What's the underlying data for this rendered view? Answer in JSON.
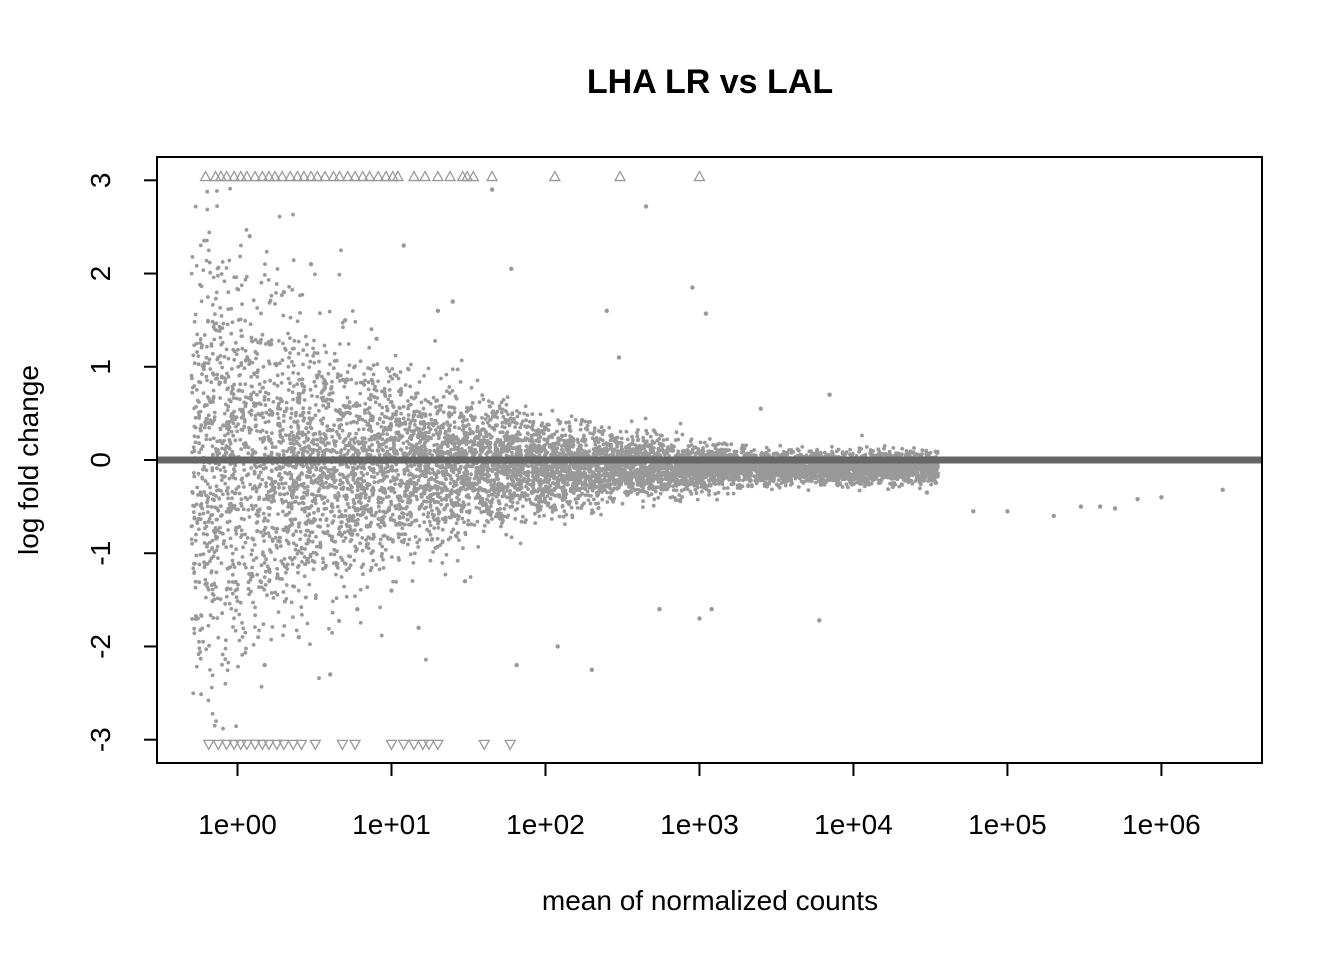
{
  "chart_data": {
    "type": "scatter",
    "title": "LHA LR vs LAL",
    "xlabel": "mean of normalized counts",
    "ylabel": "log fold change",
    "xscale": "log10",
    "xlim": [
      0.3,
      4500000
    ],
    "ylim": [
      -3.25,
      3.25
    ],
    "xticks": [
      1,
      10,
      100,
      1000,
      10000,
      100000,
      1000000
    ],
    "xtick_labels": [
      "1e+00",
      "1e+01",
      "1e+02",
      "1e+03",
      "1e+04",
      "1e+05",
      "1e+06"
    ],
    "yticks": [
      -3,
      -2,
      -1,
      0,
      1,
      2,
      3
    ],
    "ytick_labels": [
      "-3",
      "-2",
      "-1",
      "0",
      "1",
      "2",
      "3"
    ],
    "reference_line": {
      "y": 0,
      "color": "#666666"
    },
    "point_color": "#999999",
    "legend": "none",
    "grid": false,
    "series": [
      {
        "marker": "point",
        "points": [
          [
            1.2,
            2.4
          ],
          [
            1.5,
            -2.2
          ],
          [
            2.0,
            1.8
          ],
          [
            2.5,
            -1.9
          ],
          [
            3.0,
            2.1
          ],
          [
            4.0,
            -2.3
          ],
          [
            5.0,
            1.5
          ],
          [
            6.0,
            -1.6
          ],
          [
            8.0,
            1.3
          ],
          [
            10,
            -1.4
          ],
          [
            12,
            2.3
          ],
          [
            15,
            -1.8
          ],
          [
            20,
            1.6
          ],
          [
            25,
            1.7
          ],
          [
            30,
            -1.3
          ],
          [
            45,
            2.9
          ],
          [
            60,
            2.05
          ],
          [
            65,
            -2.2
          ],
          [
            120,
            -2.0
          ],
          [
            200,
            -2.25
          ],
          [
            250,
            1.6
          ],
          [
            300,
            1.1
          ],
          [
            450,
            2.72
          ],
          [
            550,
            -1.6
          ],
          [
            900,
            1.85
          ],
          [
            1000,
            -1.7
          ],
          [
            1100,
            1.57
          ],
          [
            1200,
            -1.6
          ],
          [
            2500,
            0.55
          ],
          [
            6000,
            -1.72
          ],
          [
            7000,
            0.7
          ],
          [
            30000,
            -0.35
          ],
          [
            60000,
            -0.55
          ],
          [
            100000,
            -0.55
          ],
          [
            200000,
            -0.6
          ],
          [
            300000,
            -0.5
          ],
          [
            400000,
            -0.5
          ],
          [
            500000,
            -0.52
          ],
          [
            700000,
            -0.42
          ],
          [
            1000000,
            -0.4
          ],
          [
            2500000,
            -0.32
          ]
        ]
      },
      {
        "marker": "triangle-up",
        "name": "clipped above",
        "x": [
          0.62,
          0.72,
          0.78,
          0.85,
          0.95,
          1.05,
          1.15,
          1.3,
          1.45,
          1.6,
          1.75,
          1.95,
          2.2,
          2.45,
          2.7,
          3.0,
          3.3,
          3.7,
          4.2,
          4.6,
          5.2,
          5.8,
          6.5,
          7.2,
          8.2,
          9.2,
          10.2,
          11.0,
          14.0,
          16.5,
          20,
          24,
          29,
          31,
          34,
          45,
          115,
          305,
          1000
        ],
        "y": 3.04
      },
      {
        "marker": "triangle-down",
        "name": "clipped below",
        "x": [
          0.65,
          0.75,
          0.85,
          0.95,
          1.05,
          1.15,
          1.3,
          1.45,
          1.6,
          1.8,
          2.0,
          2.3,
          2.6,
          3.2,
          4.8,
          5.8,
          10.0,
          12.0,
          14.0,
          16.0,
          17.5,
          20,
          40,
          59
        ],
        "y": -3.05
      }
    ]
  }
}
